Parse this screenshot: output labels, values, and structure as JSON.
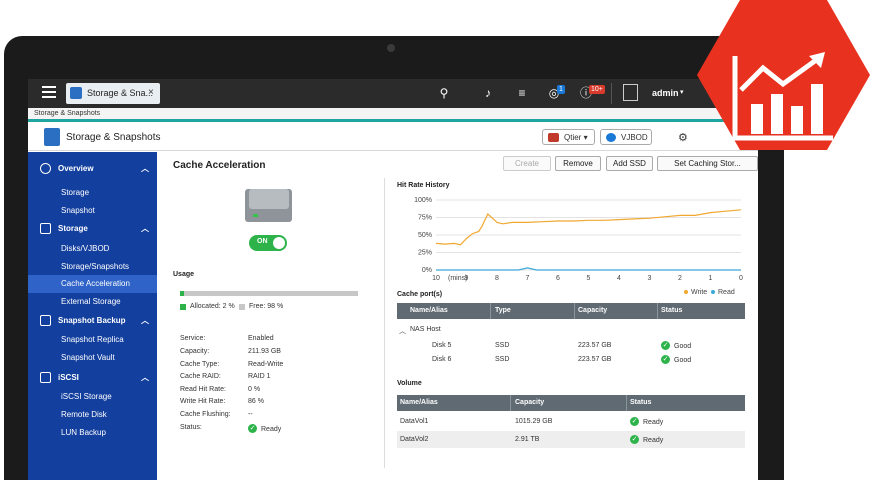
{
  "topbar": {
    "tab_label": "Storage & Sna...",
    "tab_close": "×",
    "notif_badge_1": "1",
    "notif_badge_2": "10+",
    "username": "admin",
    "user_caret": "▾"
  },
  "breadcrumb": "Storage & Snapshots",
  "header": {
    "title": "Storage & Snapshots",
    "qtier_label": "Qtier",
    "vjbod_label": "VJBOD"
  },
  "sidebar": {
    "items": [
      {
        "label": "Overview",
        "type": "section",
        "icon": "dashboard-icon"
      },
      {
        "label": "Storage",
        "type": "sub"
      },
      {
        "label": "Snapshot",
        "type": "sub"
      },
      {
        "label": "Storage",
        "type": "section",
        "icon": "database-icon"
      },
      {
        "label": "Disks/VJBOD",
        "type": "sub"
      },
      {
        "label": "Storage/Snapshots",
        "type": "sub"
      },
      {
        "label": "Cache Acceleration",
        "type": "sub",
        "active": true
      },
      {
        "label": "External Storage",
        "type": "sub"
      },
      {
        "label": "Snapshot Backup",
        "type": "section",
        "icon": "backup-icon"
      },
      {
        "label": "Snapshot Replica",
        "type": "sub"
      },
      {
        "label": "Snapshot Vault",
        "type": "sub"
      },
      {
        "label": "iSCSI",
        "type": "section",
        "icon": "iscsi-icon"
      },
      {
        "label": "iSCSI Storage",
        "type": "sub"
      },
      {
        "label": "Remote Disk",
        "type": "sub"
      },
      {
        "label": "LUN Backup",
        "type": "sub"
      }
    ]
  },
  "content": {
    "title": "Cache Acceleration",
    "buttons": {
      "create": "Create",
      "remove": "Remove",
      "add_ssd": "Add SSD",
      "set_caching": "Set Caching Stor..."
    },
    "toggle_label": "ON",
    "usage": {
      "title": "Usage",
      "allocated_label": "Allocated: 2 %",
      "free_label": "Free: 98 %",
      "allocated_fraction": 0.02
    },
    "info": [
      {
        "key": "Service:",
        "value": "Enabled"
      },
      {
        "key": "Capacity:",
        "value": "211.93 GB"
      },
      {
        "key": "Cache Type:",
        "value": "Read-Write"
      },
      {
        "key": "Cache RAID:",
        "value": "RAID 1"
      },
      {
        "key": "Read Hit Rate:",
        "value": "0 %"
      },
      {
        "key": "Write Hit Rate:",
        "value": "86 %"
      },
      {
        "key": "Cache Flushing:",
        "value": "--"
      },
      {
        "key": "Status:",
        "value": "Ready",
        "status": "ok"
      }
    ]
  },
  "chart_data": {
    "type": "line",
    "title": "Hit Rate History",
    "xlabel": "(mins)",
    "x_ticks": [
      "10",
      "9",
      "8",
      "7",
      "6",
      "5",
      "4",
      "3",
      "2",
      "1",
      "0"
    ],
    "y_ticks": [
      "100%",
      "75%",
      "50%",
      "25%",
      "0%"
    ],
    "ylim": [
      0,
      100
    ],
    "xlim": [
      10,
      0
    ],
    "legend": [
      "Write",
      "Read"
    ],
    "series": [
      {
        "name": "Write",
        "color": "#f0a830",
        "x": [
          10,
          9.7,
          9.4,
          9.2,
          9.0,
          8.8,
          8.6,
          8.5,
          8.3,
          8.1,
          8.0,
          7.8,
          7.5,
          7.0,
          6.5,
          6.0,
          5.5,
          5.0,
          4.5,
          4.0,
          3.5,
          3.0,
          2.5,
          2.0,
          1.5,
          1.0,
          0.5,
          0
        ],
        "values": [
          38,
          37,
          38,
          36,
          45,
          52,
          55,
          62,
          80,
          72,
          68,
          66,
          68,
          68,
          69,
          70,
          70,
          71,
          71,
          72,
          73,
          74,
          76,
          78,
          78,
          82,
          84,
          86
        ]
      },
      {
        "name": "Read",
        "color": "#3aa8d8",
        "x": [
          10,
          9.0,
          8.0,
          7.3,
          7.0,
          6.7,
          6.0,
          5.0,
          4.0,
          3.0,
          2.0,
          1.0,
          0
        ],
        "values": [
          0,
          0,
          0,
          0,
          3,
          0,
          0,
          0,
          0,
          0,
          0,
          0,
          0
        ]
      }
    ]
  },
  "cache_ports": {
    "label": "Cache port(s)",
    "headers": [
      "Name/Alias",
      "Type",
      "Capacity",
      "Status"
    ],
    "group": "NAS Host",
    "rows": [
      {
        "name": "Disk 5",
        "type": "SSD",
        "capacity": "223.57 GB",
        "status": "Good"
      },
      {
        "name": "Disk 6",
        "type": "SSD",
        "capacity": "223.57 GB",
        "status": "Good"
      }
    ]
  },
  "volume": {
    "label": "Volume",
    "headers": [
      "Name/Alias",
      "Capacity",
      "Status"
    ],
    "rows": [
      {
        "name": "DataVol1",
        "capacity": "1015.29 GB",
        "status": "Ready"
      },
      {
        "name": "DataVol2",
        "capacity": "2.91 TB",
        "status": "Ready"
      }
    ]
  },
  "colors": {
    "sidebar": "#133f9e",
    "accent": "#1ea5a0",
    "ok": "#2db34a",
    "brand_red": "#e8321f"
  }
}
